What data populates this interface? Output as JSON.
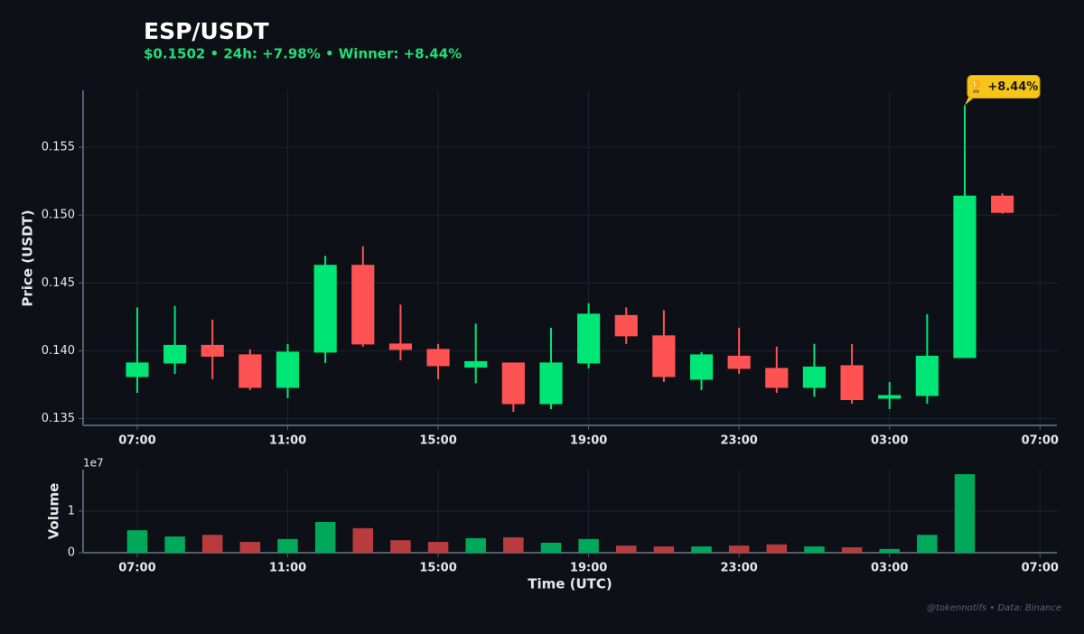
{
  "chart_data": {
    "type": "candlestick",
    "title": "ESP/USDT",
    "subtitle": "$0.1502  •  24h: +7.98%  •  Winner: +8.44%",
    "annotation": "🏆 +8.44%",
    "ylabel": "Price (USDT)",
    "xlabel": "Time (UTC)",
    "credit": "@tokennotifs  •  Data: Binance",
    "up_color": "#00e676",
    "down_color": "#ff5252",
    "x": [
      7,
      8,
      9,
      10,
      11,
      12,
      13,
      14,
      15,
      16,
      17,
      18,
      19,
      20,
      21,
      22,
      23,
      24,
      25,
      26,
      27,
      28,
      29,
      30
    ],
    "open": [
      0.1381,
      0.1391,
      0.1404,
      0.1397,
      0.1373,
      0.1399,
      0.1463,
      0.1405,
      0.1401,
      0.1388,
      0.1391,
      0.1361,
      0.1391,
      0.1426,
      0.1411,
      0.1379,
      0.1396,
      0.1387,
      0.1373,
      0.1389,
      0.1365,
      0.1367,
      0.1395,
      0.1514
    ],
    "high": [
      0.1432,
      0.1433,
      0.1423,
      0.1401,
      0.1405,
      0.147,
      0.1477,
      0.1434,
      0.1405,
      0.142,
      0.1391,
      0.1417,
      0.1435,
      0.1432,
      0.143,
      0.1399,
      0.1417,
      0.1403,
      0.1405,
      0.1405,
      0.1377,
      0.1427,
      0.1581,
      0.1516
    ],
    "low": [
      0.1369,
      0.1383,
      0.1379,
      0.1371,
      0.1365,
      0.1391,
      0.1403,
      0.1393,
      0.1379,
      0.1376,
      0.1355,
      0.1357,
      0.1387,
      0.1405,
      0.1377,
      0.1371,
      0.1383,
      0.1369,
      0.1366,
      0.1361,
      0.1357,
      0.1361,
      0.1395,
      0.1501
    ],
    "close": [
      0.1391,
      0.1404,
      0.1396,
      0.1373,
      0.1399,
      0.1463,
      0.1405,
      0.1401,
      0.1389,
      0.1392,
      0.1361,
      0.1391,
      0.1427,
      0.1411,
      0.1381,
      0.1397,
      0.1387,
      0.1373,
      0.1388,
      0.1364,
      0.1367,
      0.1396,
      0.1514,
      0.1502
    ],
    "xlim": [
      5.56,
      31.45
    ],
    "xticks": [
      {
        "value": 7,
        "label": "07:00"
      },
      {
        "value": 11,
        "label": "11:00"
      },
      {
        "value": 15,
        "label": "15:00"
      },
      {
        "value": 19,
        "label": "19:00"
      },
      {
        "value": 23,
        "label": "23:00"
      },
      {
        "value": 27,
        "label": "03:00"
      },
      {
        "value": 31,
        "label": "07:00"
      }
    ],
    "ylim": [
      0.1345,
      0.1592
    ],
    "yticks": [
      0.135,
      {
        "value": 0.14,
        "label": "0.140"
      },
      0.145,
      {
        "value": 0.15,
        "label": "0.150"
      },
      0.155
    ],
    "grid": true,
    "volume": {
      "type": "bar",
      "ylabel": "Volume",
      "offset_label": "1e7",
      "up_color": "#00a85a",
      "down_color": "#b83c3e",
      "values": [
        0.54,
        0.39,
        0.43,
        0.26,
        0.33,
        0.74,
        0.59,
        0.3,
        0.26,
        0.35,
        0.37,
        0.24,
        0.33,
        0.17,
        0.15,
        0.15,
        0.17,
        0.2,
        0.15,
        0.13,
        0.09,
        0.43,
        1.89,
        0
      ],
      "ylim": [
        0,
        2
      ],
      "yticks": [
        0,
        1
      ]
    }
  }
}
